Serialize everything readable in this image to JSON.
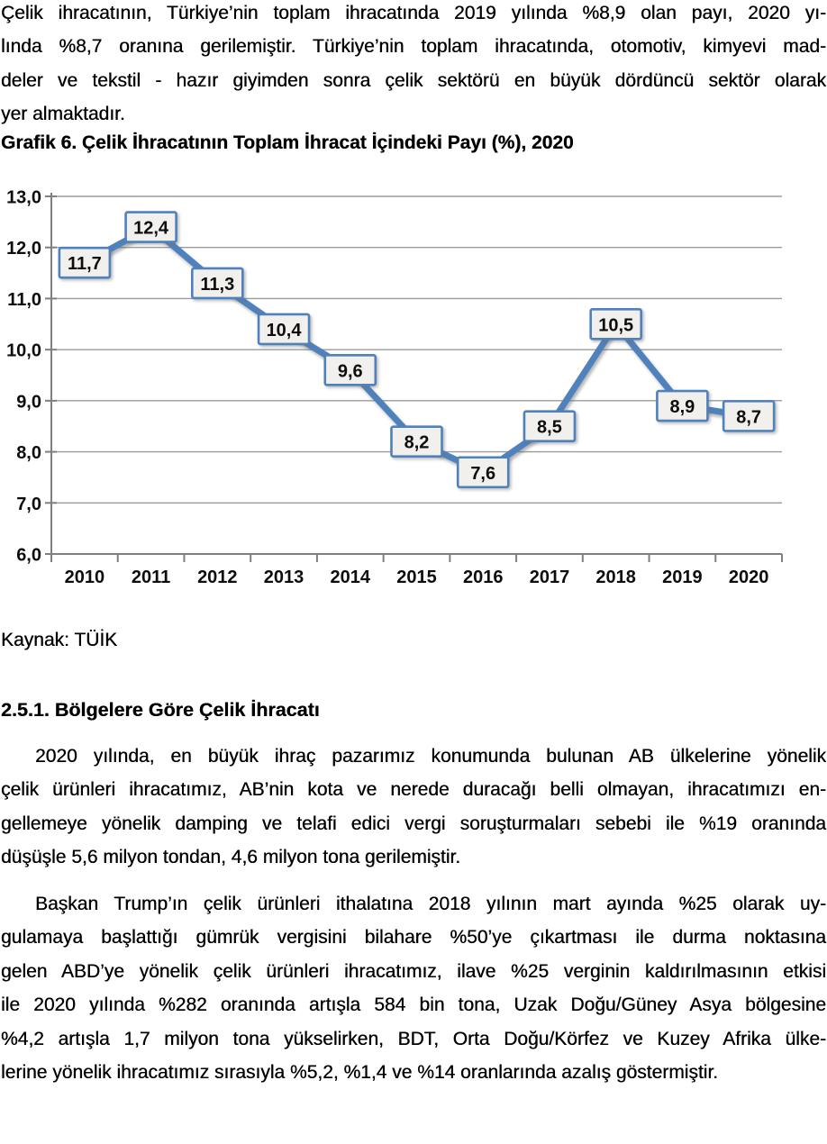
{
  "page": {
    "intro_paragraph": {
      "lines": [
        "Çelik ihracatının, Türkiye’nin toplam ihracatında 2019 yılında %8,9 olan payı, 2020 yı-",
        "lında %8,7 oranına gerilemiştir. Türkiye’nin toplam ihracatında, otomotiv, kimyevi mad-",
        "deler ve tekstil - hazır giyimden sonra çelik sektörü en büyük dördüncü sektör olarak",
        "yer almaktadır."
      ]
    },
    "chart_title": "Grafik 6. Çelik İhracatının Toplam İhracat İçindeki Payı (%), 2020",
    "source_label": "Kaynak: TÜİK",
    "section_heading": "2.5.1. Bölgelere Göre Çelik İhracatı",
    "paragraph_ab": {
      "lines": [
        "2020 yılında, en büyük ihraç pazarımız konumunda bulunan AB ülkelerine yönelik",
        "çelik ürünleri ihracatımız, AB’nin kota ve nerede duracağı belli olmayan, ihracatımızı en-",
        "gellemeye yönelik damping ve telafi edici vergi soruşturmaları sebebi ile %19 oranında",
        "düşüşle 5,6 milyon tondan, 4,6 milyon tona gerilemiştir."
      ]
    },
    "paragraph_trump": {
      "lines": [
        "Başkan Trump’ın çelik ürünleri ithalatına 2018 yılının mart ayında %25 olarak uy-",
        "gulamaya başlattığı gümrük vergisini bilahare %50’ye çıkartması ile durma noktasına",
        "gelen ABD’ye yönelik çelik ürünleri ihracatımız, ilave %25 verginin kaldırılmasının etkisi",
        "ile 2020 yılında %282 oranında artışla 584 bin tona, Uzak Doğu/Güney Asya bölgesine",
        "%4,2 artışla 1,7 milyon tona yükselirken, BDT, Orta Doğu/Körfez ve Kuzey Afrika ülke-",
        "lerine yönelik ihracatımız sırasıyla %5,2, %1,4 ve %14 oranlarında azalış göstermiştir."
      ]
    }
  },
  "chart_data": {
    "type": "line",
    "title": "Grafik 6. Çelik İhracatının Toplam İhracat İçindeki Payı (%), 2020",
    "categories": [
      "2010",
      "2011",
      "2012",
      "2013",
      "2014",
      "2015",
      "2016",
      "2017",
      "2018",
      "2019",
      "2020"
    ],
    "values": [
      11.7,
      12.4,
      11.3,
      10.4,
      9.6,
      8.2,
      7.6,
      8.5,
      10.5,
      8.9,
      8.7
    ],
    "value_labels": [
      "11,7",
      "12,4",
      "11,3",
      "10,4",
      "9,6",
      "8,2",
      "7,6",
      "8,5",
      "10,5",
      "8,9",
      "8,7"
    ],
    "xlabel": "",
    "ylabel": "",
    "ylim": [
      6,
      13
    ],
    "ystep": 1,
    "ytick_labels": [
      "6,0",
      "7,0",
      "8,0",
      "9,0",
      "10,0",
      "11,0",
      "12,0",
      "13,0"
    ],
    "grid": true,
    "legend_position": "none",
    "colors": {
      "line": "#4f81bd",
      "label_box_fill": "#f2f0ed",
      "label_box_border": "#4f81bd",
      "grid": "#9b9b9b",
      "axis": "#7f7f7f",
      "text": "#0d0d0d"
    }
  }
}
